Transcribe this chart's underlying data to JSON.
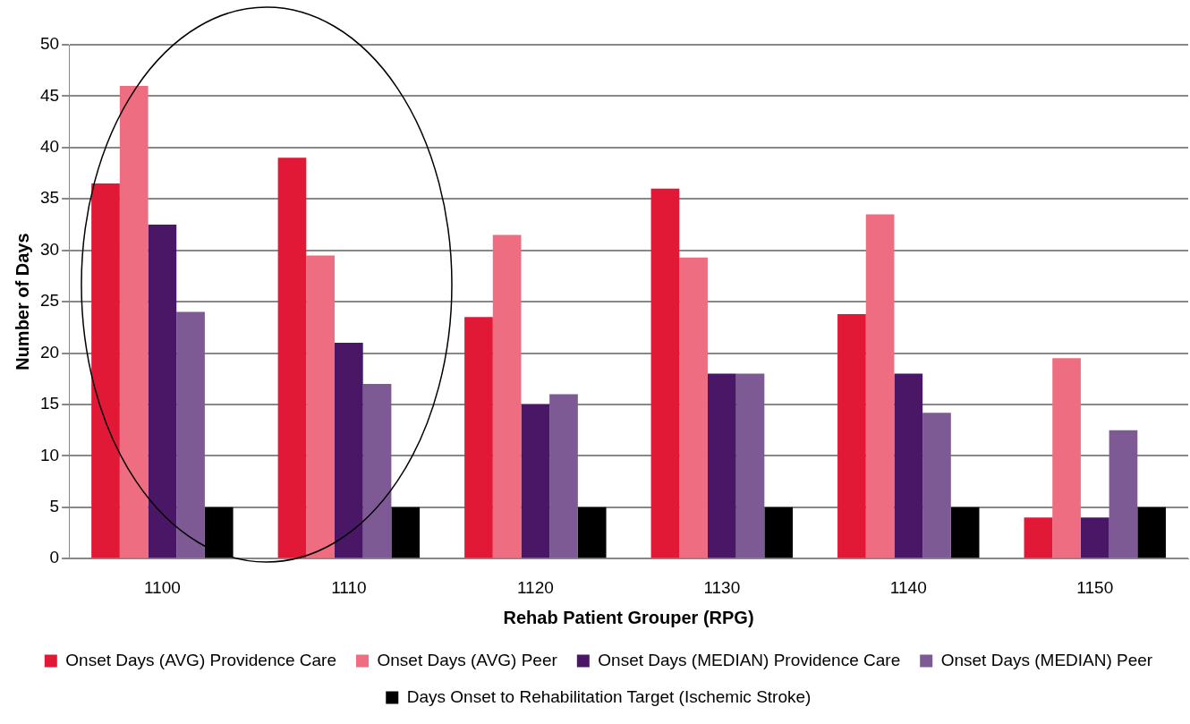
{
  "chart_data": {
    "type": "bar",
    "xlabel": "Rehab Patient Grouper (RPG)",
    "ylabel": "Number of Days",
    "categories": [
      "1100",
      "1110",
      "1120",
      "1130",
      "1140",
      "1150"
    ],
    "series": [
      {
        "name": "Onset Days (AVG) Providence Care",
        "color": "#e11937",
        "values": [
          36.5,
          39,
          23.5,
          36,
          23.8,
          4
        ]
      },
      {
        "name": "Onset Days (AVG) Peer",
        "color": "#ee6d80",
        "values": [
          46,
          29.5,
          31.5,
          29.3,
          33.5,
          19.5
        ]
      },
      {
        "name": "Onset Days (MEDIAN) Providence Care",
        "color": "#4a1767",
        "values": [
          32.5,
          21,
          15,
          18,
          18,
          4
        ]
      },
      {
        "name": "Onset Days (MEDIAN) Peer",
        "color": "#7d5a93",
        "values": [
          24,
          17,
          16,
          18,
          14.2,
          12.5
        ]
      },
      {
        "name": "Days Onset to Rehabilitation Target (Ischemic Stroke)",
        "color": "#000000",
        "values": [
          5,
          5,
          5,
          5,
          5,
          5
        ]
      }
    ],
    "ylim": [
      0,
      50
    ],
    "yticks": [
      0,
      5,
      10,
      15,
      20,
      25,
      30,
      35,
      40,
      45,
      50
    ],
    "grid": "y",
    "legend": "bottom"
  }
}
